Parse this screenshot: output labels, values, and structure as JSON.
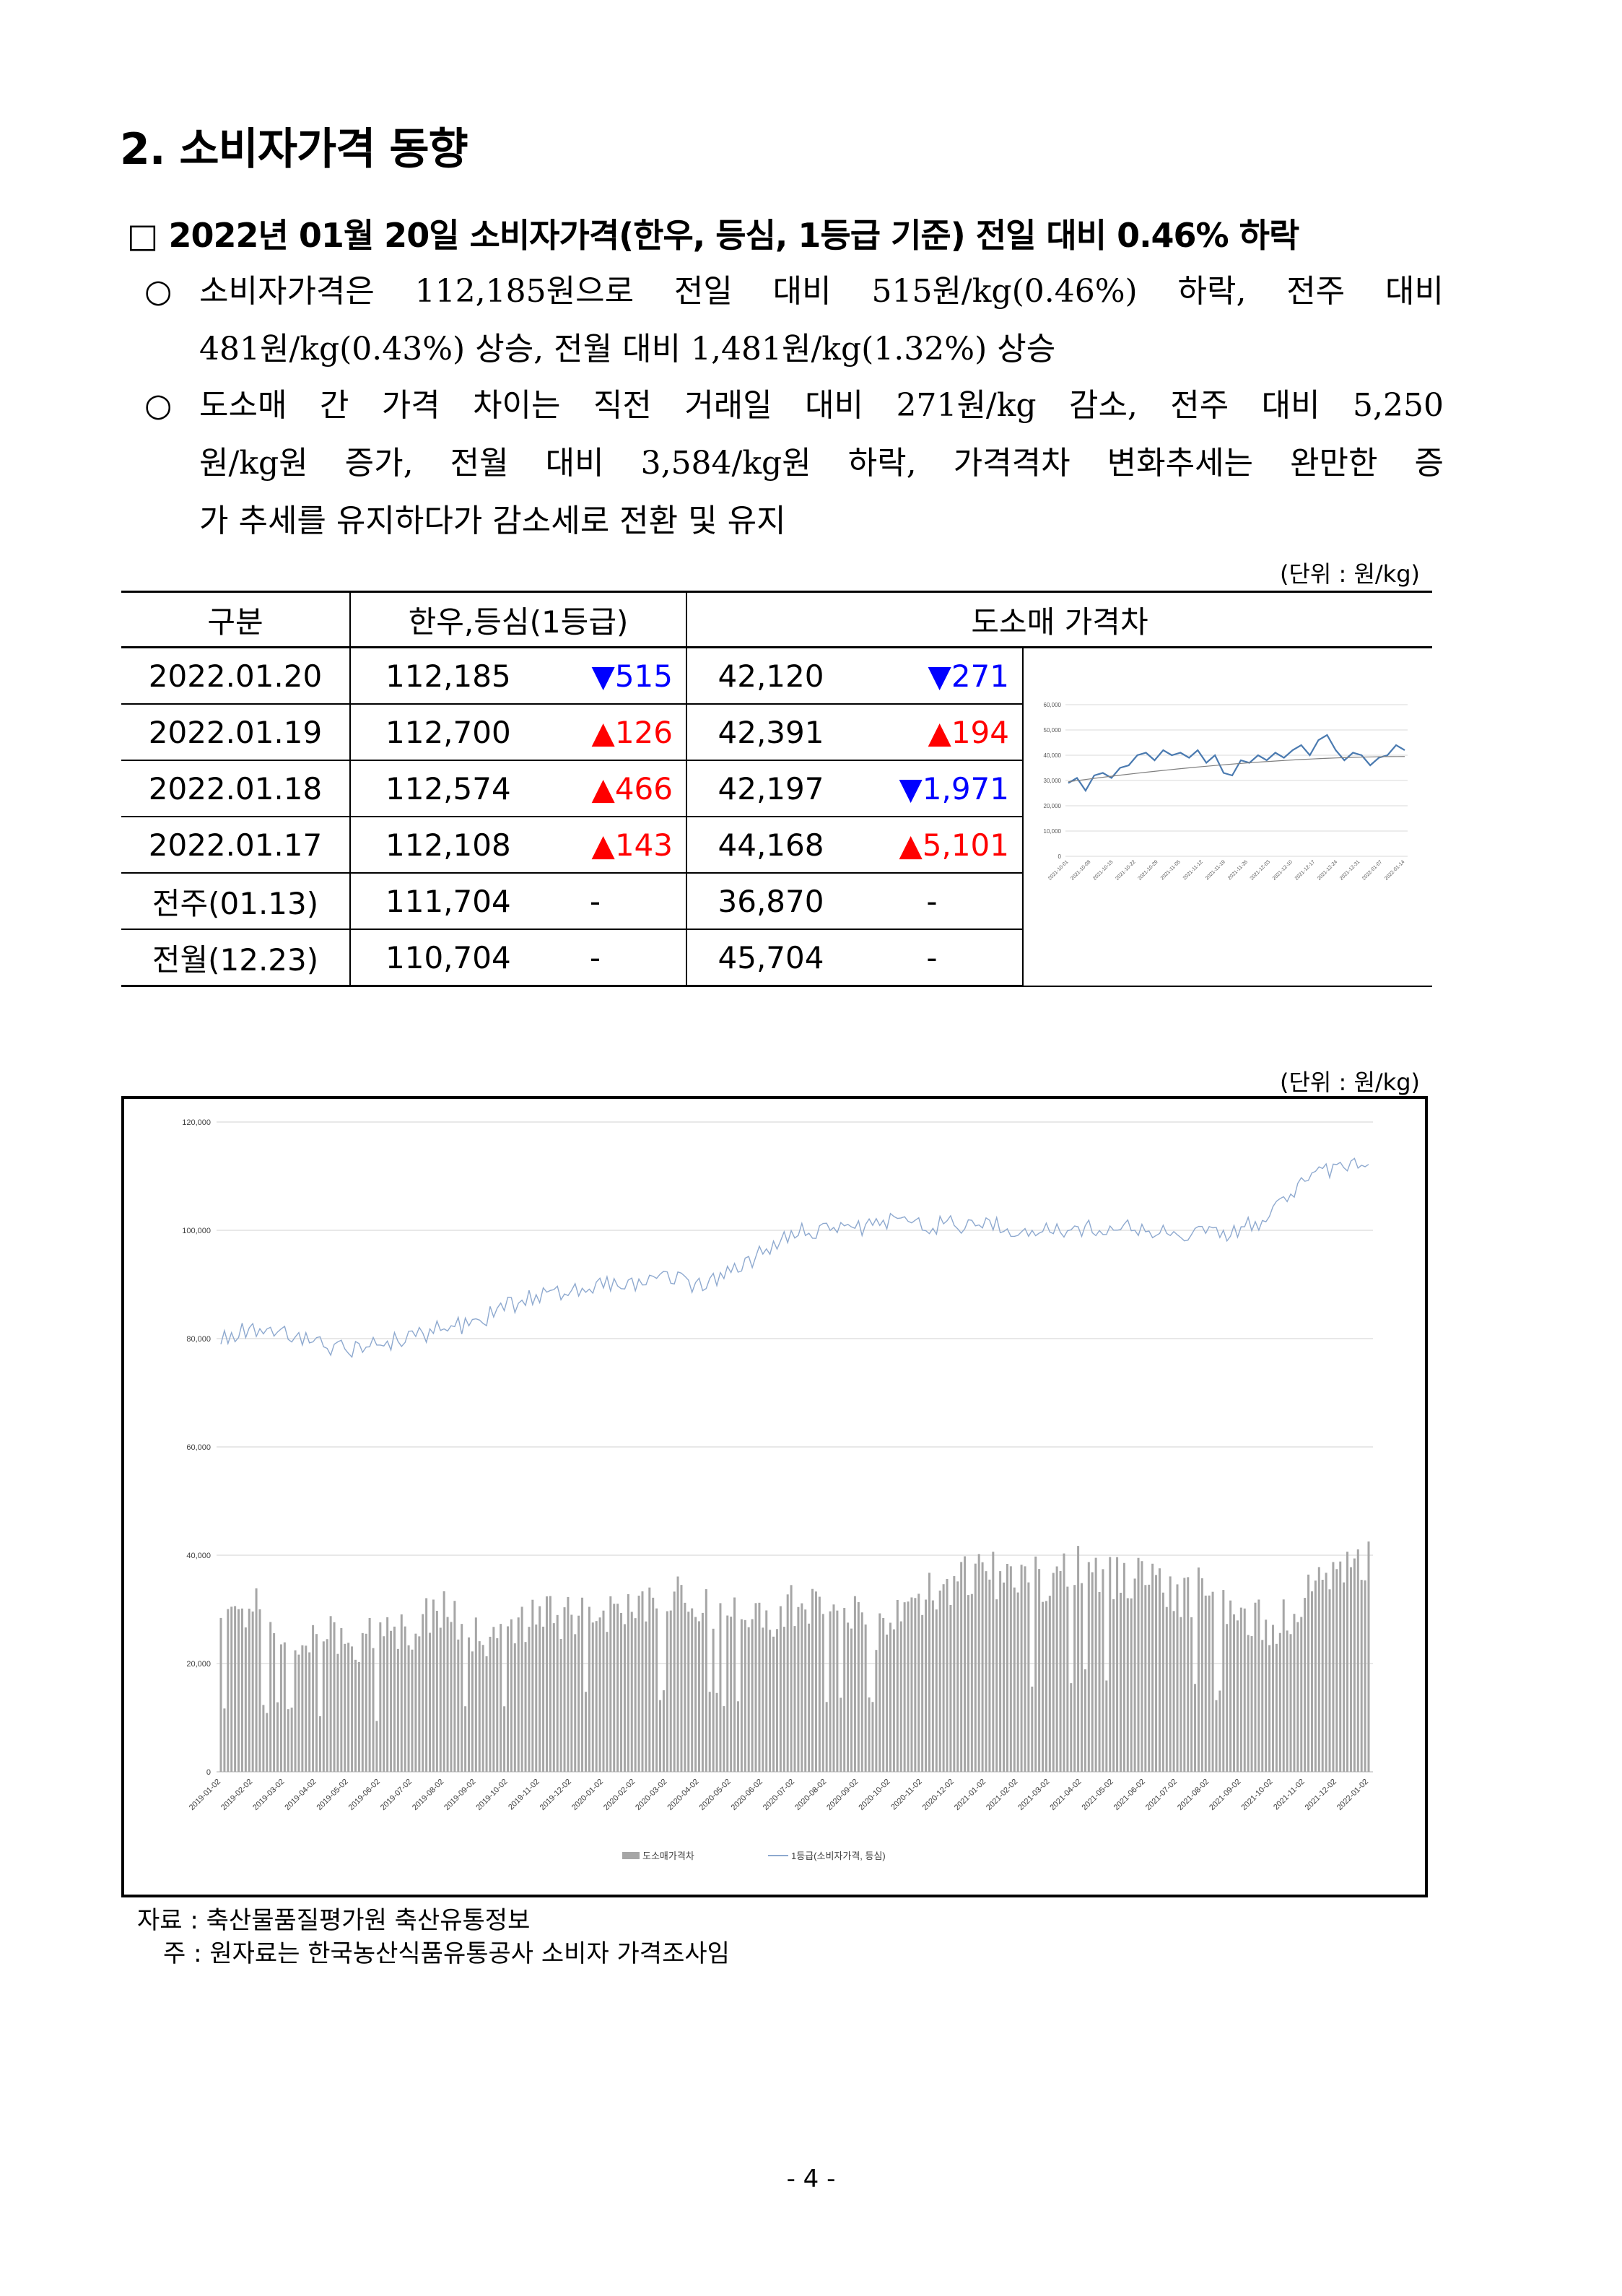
{
  "section_title": "2. 소비자가격 동향",
  "headline": "□ 2022년 01월 20일 소비자가격(한우, 등심, 1등급 기준) 전일 대비 0.46% 하락",
  "bullets": [
    {
      "mark": "○",
      "line1": "소비자가격은 112,185원으로 전일 대비 515원/kg(0.46%) 하락, 전주 대비",
      "line2": "481원/kg(0.43%) 상승, 전월 대비 1,481원/kg(1.32%) 상승",
      "line3": ""
    },
    {
      "mark": "○",
      "line1": "도소매 간 가격 차이는 직전 거래일 대비 271원/kg 감소, 전주 대비 5,250",
      "line2": "원/kg원 증가, 전월 대비 3,584/kg원 하락, 가격격차 변화추세는 완만한 증",
      "line3": "가 추세를 유지하다가 감소세로 전환 및 유지"
    }
  ],
  "unit_label": "(단위 : 원/kg)",
  "table": {
    "headers": [
      "구분",
      "한우,등심(1등급)",
      "도소매 가격차"
    ],
    "rows": [
      {
        "date": "2022.01.20",
        "price": "112,185",
        "pchg": "▼515",
        "pdir": "dn",
        "gap": "42,120",
        "gchg": "▼271",
        "gdir": "dn"
      },
      {
        "date": "2022.01.19",
        "price": "112,700",
        "pchg": "▲126",
        "pdir": "up",
        "gap": "42,391",
        "gchg": "▲194",
        "gdir": "up"
      },
      {
        "date": "2022.01.18",
        "price": "112,574",
        "pchg": "▲466",
        "pdir": "up",
        "gap": "42,197",
        "gchg": "▼1,971",
        "gdir": "dn"
      },
      {
        "date": "2022.01.17",
        "price": "112,108",
        "pchg": "▲143",
        "pdir": "up",
        "gap": "44,168",
        "gchg": "▲5,101",
        "gdir": "up"
      },
      {
        "date": "전주(01.13)",
        "price": "111,704",
        "pchg": "-",
        "pdir": "",
        "gap": "36,870",
        "gchg": "-",
        "gdir": ""
      },
      {
        "date": "전월(12.23)",
        "price": "110,704",
        "pchg": "-",
        "pdir": "",
        "gap": "45,704",
        "gchg": "-",
        "gdir": ""
      }
    ]
  },
  "source": "자료 : 축산물품질평가원 축산유통정보",
  "note": "주 : 원자료는 한국농산식품유통공사 소비자 가격조사임",
  "page_number": "- 4 -",
  "chart_data": [
    {
      "type": "line",
      "series": [
        {
          "values": [
            29000,
            31000,
            26000,
            32000,
            33000,
            31000,
            35000,
            36000,
            40000,
            41000,
            38000,
            42000,
            40000,
            41000,
            39000,
            42000,
            37000,
            40000,
            33000,
            32000,
            38000,
            37000,
            40000,
            38000,
            41000,
            39000,
            42000,
            44000,
            40000,
            46000,
            48000,
            42000,
            38000,
            41000,
            40000,
            36000,
            39000,
            40000,
            44000,
            42000
          ]
        }
      ],
      "trendline": [
        29500,
        39500
      ],
      "ylim": [
        0,
        60000
      ],
      "yticks": [
        "0",
        "10,000",
        "20,000",
        "30,000",
        "40,000",
        "50,000",
        "60,000"
      ],
      "xticks": [
        "2021-10-01",
        "2021-10-08",
        "2021-10-15",
        "2021-10-22",
        "2021-10-29",
        "2021-11-05",
        "2021-11-12",
        "2021-11-19",
        "2021-11-26",
        "2021-12-03",
        "2021-12-10",
        "2021-12-17",
        "2021-12-24",
        "2021-12-31",
        "2022-01-07",
        "2022-01-14"
      ]
    },
    {
      "type": "bar+line",
      "categories": [
        "2019-01-02",
        "2019-02-02",
        "2019-03-02",
        "2019-04-02",
        "2019-05-02",
        "2019-06-02",
        "2019-07-02",
        "2019-08-02",
        "2019-09-02",
        "2019-10-02",
        "2019-11-02",
        "2019-12-02",
        "2020-01-02",
        "2020-02-02",
        "2020-03-02",
        "2020-04-02",
        "2020-05-02",
        "2020-06-02",
        "2020-07-02",
        "2020-08-02",
        "2020-09-02",
        "2020-10-02",
        "2020-11-02",
        "2020-12-02",
        "2021-01-02",
        "2021-02-02",
        "2021-03-02",
        "2021-04-02",
        "2021-05-02",
        "2021-06-02",
        "2021-07-02",
        "2021-08-02",
        "2021-09-02",
        "2021-10-02",
        "2021-11-02",
        "2021-12-02",
        "2022-01-02"
      ],
      "series": [
        {
          "name": "도소매가격차",
          "type": "bar",
          "values": [
            28000,
            30000,
            26000,
            25000,
            24000,
            25000,
            27000,
            30000,
            26000,
            25000,
            28000,
            29000,
            28000,
            30000,
            33000,
            31000,
            29000,
            27000,
            31000,
            29000,
            28000,
            26000,
            32000,
            35000,
            37000,
            35000,
            36000,
            38000,
            36000,
            36000,
            32000,
            34000,
            30000,
            26000,
            33000,
            38000,
            40000
          ]
        },
        {
          "name": "1등급(소비자가격, 등심)",
          "type": "line",
          "values": [
            80000,
            82000,
            81000,
            79000,
            78000,
            79000,
            80000,
            82000,
            83000,
            86000,
            88000,
            89000,
            90000,
            90000,
            91000,
            90000,
            92000,
            96000,
            100000,
            100000,
            100000,
            102000,
            101000,
            101000,
            101000,
            100000,
            100000,
            100000,
            101000,
            100000,
            100000,
            99000,
            100000,
            103000,
            110000,
            111000,
            112000
          ]
        }
      ],
      "ylim": [
        0,
        120000
      ],
      "yticks": [
        "0",
        "20,000",
        "40,000",
        "60,000",
        "80,000",
        "100,000",
        "120,000"
      ]
    }
  ]
}
